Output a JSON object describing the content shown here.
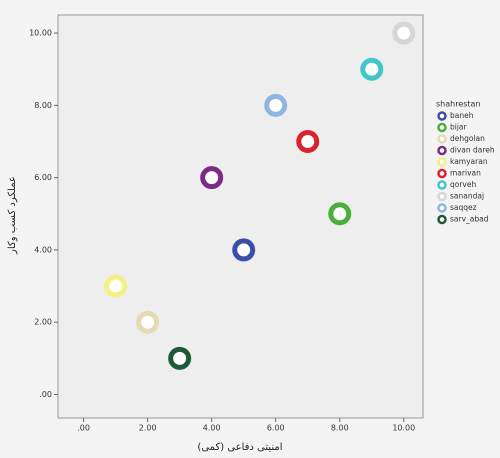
{
  "chart_data": {
    "type": "scatter",
    "x_label": "امنیتی دفاعی (کمی)",
    "y_label": "عملکرد کسب وکار",
    "legend_title": "shahrestan",
    "legend": "right",
    "xlim": [
      -0.8,
      10.6
    ],
    "ylim": [
      -0.65,
      10.5
    ],
    "xticks": [
      {
        "value": 0,
        "label": ".00"
      },
      {
        "value": 2,
        "label": "2.00"
      },
      {
        "value": 4,
        "label": "4.00"
      },
      {
        "value": 6,
        "label": "6.00"
      },
      {
        "value": 8,
        "label": "8.00"
      },
      {
        "value": 10,
        "label": "10.00"
      }
    ],
    "yticks": [
      {
        "value": 0,
        "label": ".00"
      },
      {
        "value": 2,
        "label": "2.00"
      },
      {
        "value": 4,
        "label": "4.00"
      },
      {
        "value": 6,
        "label": "6.00"
      },
      {
        "value": 8,
        "label": "8.00"
      },
      {
        "value": 10,
        "label": "10.00"
      }
    ],
    "series": [
      {
        "name": "baneh",
        "color": "#3b4fa8",
        "x": [
          5
        ],
        "values": [
          4
        ]
      },
      {
        "name": "bijar",
        "color": "#4caf3c",
        "x": [
          8
        ],
        "values": [
          5
        ]
      },
      {
        "name": "dehgolan",
        "color": "#e6dab4",
        "x": [
          2
        ],
        "values": [
          2
        ]
      },
      {
        "name": "divan dareh",
        "color": "#7b2a85",
        "x": [
          4
        ],
        "values": [
          6
        ]
      },
      {
        "name": "kamyaran",
        "color": "#f5ef86",
        "x": [
          1
        ],
        "values": [
          3
        ]
      },
      {
        "name": "marivan",
        "color": "#d9232f",
        "x": [
          7
        ],
        "values": [
          7
        ]
      },
      {
        "name": "qorveh",
        "color": "#43c6c9",
        "x": [
          9
        ],
        "values": [
          9
        ]
      },
      {
        "name": "sanandaj",
        "color": "#d6d6d6",
        "x": [
          10
        ],
        "values": [
          10
        ]
      },
      {
        "name": "saqqez",
        "color": "#8fb6e0",
        "x": [
          6
        ],
        "values": [
          8
        ]
      },
      {
        "name": "sarv_abad",
        "color": "#1f5a38",
        "x": [
          3
        ],
        "values": [
          1
        ]
      }
    ]
  }
}
